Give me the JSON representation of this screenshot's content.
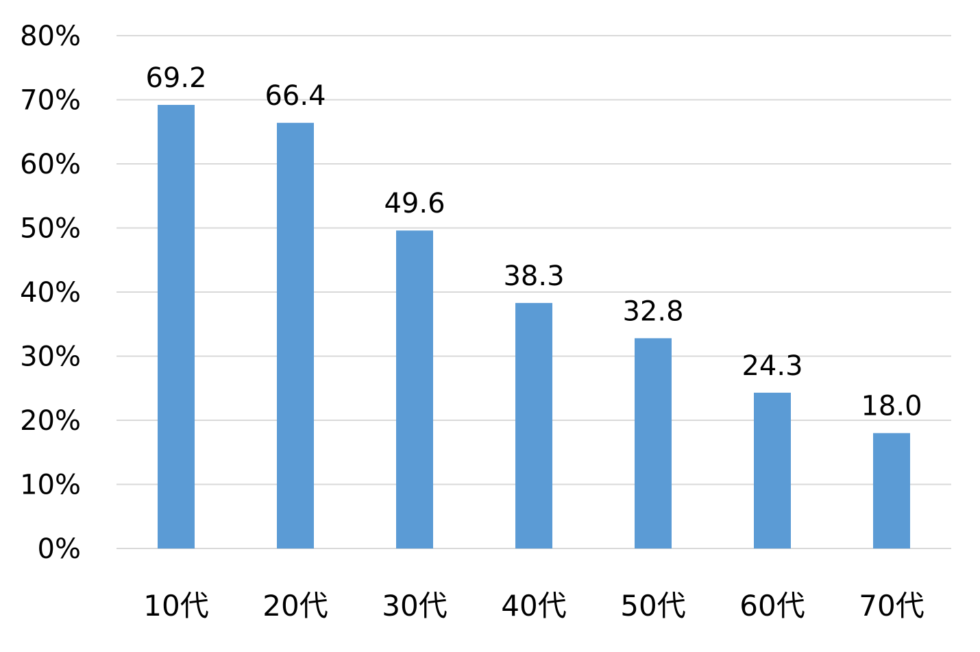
{
  "chart_data": {
    "type": "bar",
    "categories": [
      "10代",
      "20代",
      "30代",
      "40代",
      "50代",
      "60代",
      "70代"
    ],
    "values": [
      69.2,
      66.4,
      49.6,
      38.3,
      32.8,
      24.3,
      18.0
    ],
    "data_labels": [
      "69.2",
      "66.4",
      "49.6",
      "38.3",
      "32.8",
      "24.3",
      "18.0"
    ],
    "ylim": [
      0,
      80
    ],
    "yticks": [
      0,
      10,
      20,
      30,
      40,
      50,
      60,
      70,
      80
    ],
    "ytick_labels": [
      "0%",
      "10%",
      "20%",
      "30%",
      "40%",
      "50%",
      "60%",
      "70%",
      "80%"
    ],
    "grid": true,
    "legend": "none",
    "bar_color": "#5b9bd5",
    "grid_color": "#d9d9d9"
  }
}
